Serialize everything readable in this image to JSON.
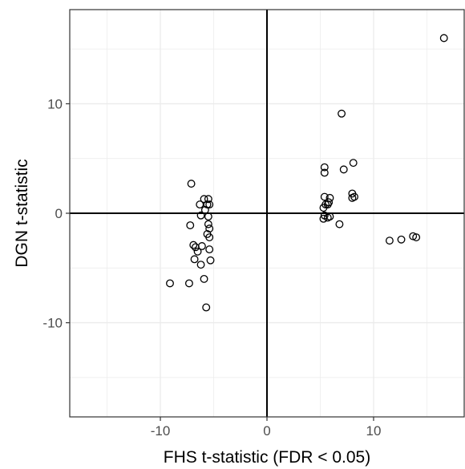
{
  "chart_data": {
    "type": "scatter",
    "title": "",
    "xlabel": "FHS t-statistic (FDR < 0.05)",
    "ylabel": "DGN t-statistic",
    "xlim": [
      -18.5,
      18.5
    ],
    "ylim": [
      -18.6,
      18.6
    ],
    "x_ticks": [
      -10,
      0,
      10
    ],
    "y_ticks": [
      -10,
      0,
      10
    ],
    "x_tick_labels": [
      "-10",
      "0",
      "10"
    ],
    "y_tick_labels": [
      "-10",
      "0",
      "10"
    ],
    "grid": true,
    "reference_lines": [
      0
    ],
    "legend": "none",
    "colors": {
      "panel_border": "#333333",
      "grid": "#ebebeb",
      "reference_line": "#000000",
      "point_stroke": "#000000"
    },
    "series": [
      {
        "points": [
          [
            -7.1,
            2.7
          ],
          [
            -7.2,
            -1.1
          ],
          [
            -6.9,
            -2.9
          ],
          [
            -6.7,
            -3.1
          ],
          [
            -6.8,
            -4.2
          ],
          [
            -6.5,
            -3.5
          ],
          [
            -6.3,
            0.8
          ],
          [
            -6.2,
            -0.2
          ],
          [
            -6.1,
            -3.0
          ],
          [
            -6.2,
            -4.7
          ],
          [
            -5.9,
            1.3
          ],
          [
            -5.8,
            0.3
          ],
          [
            -5.9,
            -6.0
          ],
          [
            -5.7,
            -8.6
          ],
          [
            -5.6,
            0.8
          ],
          [
            -5.5,
            1.3
          ],
          [
            -5.5,
            -0.3
          ],
          [
            -5.5,
            -1.0
          ],
          [
            -5.4,
            -1.4
          ],
          [
            -5.6,
            -1.9
          ],
          [
            -5.4,
            -2.2
          ],
          [
            -5.4,
            -3.3
          ],
          [
            -5.3,
            -4.3
          ],
          [
            -5.4,
            0.8
          ],
          [
            -9.1,
            -6.4
          ],
          [
            -7.3,
            -6.4
          ],
          [
            5.4,
            4.2
          ],
          [
            5.4,
            3.7
          ],
          [
            5.4,
            1.5
          ],
          [
            5.5,
            0.8
          ],
          [
            5.3,
            0.5
          ],
          [
            5.4,
            -0.2
          ],
          [
            5.3,
            -0.5
          ],
          [
            5.7,
            -0.4
          ],
          [
            5.9,
            -0.3
          ],
          [
            5.8,
            1.0
          ],
          [
            5.9,
            1.4
          ],
          [
            5.7,
            0.8
          ],
          [
            6.8,
            -1.0
          ],
          [
            7.0,
            9.1
          ],
          [
            7.2,
            4.0
          ],
          [
            8.1,
            4.6
          ],
          [
            8.0,
            1.8
          ],
          [
            8.0,
            1.4
          ],
          [
            8.2,
            1.5
          ],
          [
            11.5,
            -2.5
          ],
          [
            12.6,
            -2.4
          ],
          [
            13.7,
            -2.1
          ],
          [
            14.0,
            -2.2
          ],
          [
            16.6,
            16.0
          ]
        ]
      }
    ]
  }
}
